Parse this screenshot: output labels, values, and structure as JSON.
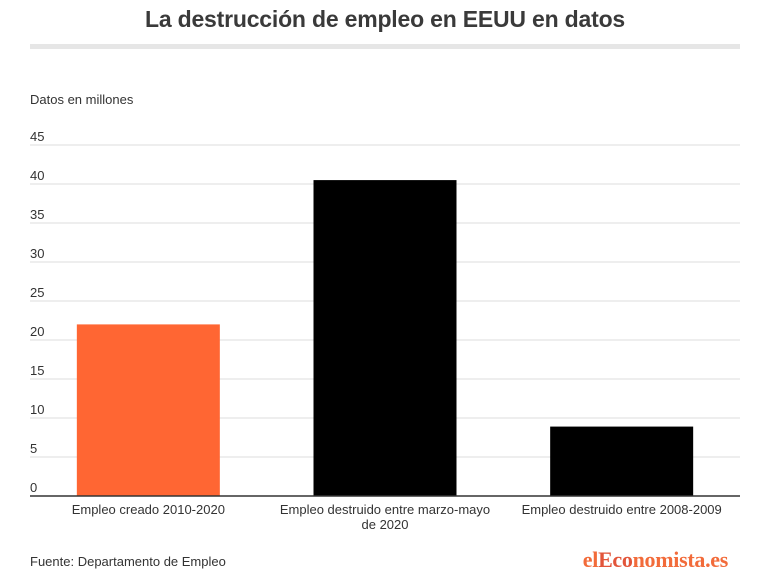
{
  "title": "La destrucción de empleo en EEUU en datos",
  "unit_label": "Datos en millones",
  "source": "Fuente: Departamento de Empleo",
  "logo": "elEconomista.es",
  "colors": {
    "orange": "#ff6633",
    "black": "#000000",
    "grid": "#dddddd",
    "axis": "#333333"
  },
  "chart_data": {
    "type": "bar",
    "categories": [
      [
        "Empleo creado 2010-2020"
      ],
      [
        "Empleo destruido entre marzo-mayo",
        "de 2020"
      ],
      [
        "Empleo destruido entre 2008-2009"
      ]
    ],
    "values": [
      22.0,
      40.5,
      8.9
    ],
    "bar_colors": [
      "#ff6633",
      "#000000",
      "#000000"
    ],
    "ylim": [
      0,
      45
    ],
    "yticks": [
      0,
      5,
      10,
      15,
      20,
      25,
      30,
      35,
      40,
      45
    ],
    "grid": true,
    "xlabel": "",
    "ylabel": ""
  }
}
